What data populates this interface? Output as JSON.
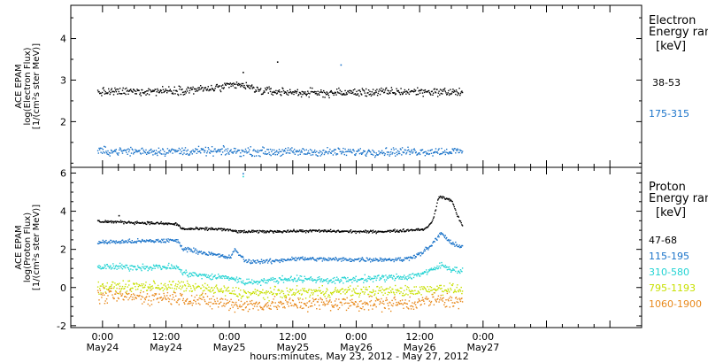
{
  "chart_data": {
    "type": "scatter",
    "xlabel": "hours:minutes, May 23, 2012 - May 27, 2012",
    "x_axis": {
      "range_hours": [
        -6,
        102
      ],
      "ticks": [
        {
          "hour": 0,
          "time": "0:00",
          "date": "May24"
        },
        {
          "hour": 12,
          "time": "12:00",
          "date": "May24"
        },
        {
          "hour": 24,
          "time": "0:00",
          "date": "May25"
        },
        {
          "hour": 36,
          "time": "12:00",
          "date": "May25"
        },
        {
          "hour": 48,
          "time": "0:00",
          "date": "May26"
        },
        {
          "hour": 60,
          "time": "12:00",
          "date": "May26"
        },
        {
          "hour": 72,
          "time": "0:00",
          "date": "May27"
        }
      ]
    },
    "panels": [
      {
        "id": "electron",
        "ylabel_lines": [
          "ACE EPAM",
          "log(Electron Flux)",
          "[1/(cm²s ster MeV)]"
        ],
        "ylim": [
          0.9,
          4.8
        ],
        "yticks": [
          2,
          3,
          4
        ],
        "legend_title": "Electron",
        "legend_subtitle": "Energy ranges",
        "legend_unit": "[keV]",
        "series": [
          {
            "name": "38-53",
            "color": "#000000",
            "profile": [
              [
                -1,
                2.72
              ],
              [
                12,
                2.76
              ],
              [
                20,
                2.8
              ],
              [
                26,
                2.9
              ],
              [
                30,
                2.75
              ],
              [
                40,
                2.7
              ],
              [
                50,
                2.72
              ],
              [
                60,
                2.74
              ],
              [
                68,
                2.72
              ]
            ],
            "jitter": 0.07,
            "outliers": [
              [
                26.5,
                3.2
              ],
              [
                33,
                3.45
              ]
            ]
          },
          {
            "name": "175-315",
            "color": "#1a73c9",
            "profile": [
              [
                -1,
                1.3
              ],
              [
                20,
                1.3
              ],
              [
                40,
                1.28
              ],
              [
                68,
                1.3
              ]
            ],
            "jitter": 0.07,
            "outliers": [
              [
                45,
                3.38
              ]
            ]
          }
        ]
      },
      {
        "id": "proton",
        "ylabel_lines": [
          "ACE EPAM",
          "log(Proton Flux)",
          "[1/(cm²s ster MeV)]"
        ],
        "ylim": [
          -2.1,
          6.3
        ],
        "yticks": [
          -2,
          0,
          2,
          4,
          6
        ],
        "legend_title": "Proton",
        "legend_subtitle": "Energy ranges",
        "legend_unit": "[keV]",
        "series": [
          {
            "name": "47-68",
            "color": "#000000",
            "profile": [
              [
                -1,
                3.5
              ],
              [
                10,
                3.4
              ],
              [
                14,
                3.35
              ],
              [
                15,
                3.1
              ],
              [
                22,
                3.1
              ],
              [
                26,
                2.95
              ],
              [
                40,
                3.0
              ],
              [
                50,
                2.95
              ],
              [
                56,
                3.0
              ],
              [
                61,
                3.1
              ],
              [
                62.5,
                3.6
              ],
              [
                63.5,
                4.8
              ],
              [
                66,
                4.6
              ],
              [
                67,
                3.8
              ],
              [
                68,
                3.3
              ]
            ],
            "jitter": 0.05,
            "outliers": [
              [
                3,
                3.8
              ]
            ]
          },
          {
            "name": "115-195",
            "color": "#1a73c9",
            "profile": [
              [
                -1,
                2.4
              ],
              [
                14,
                2.5
              ],
              [
                15,
                2.1
              ],
              [
                20,
                1.8
              ],
              [
                24,
                1.6
              ],
              [
                25,
                2.0
              ],
              [
                27,
                1.4
              ],
              [
                32,
                1.4
              ],
              [
                36,
                1.55
              ],
              [
                44,
                1.5
              ],
              [
                50,
                1.5
              ],
              [
                54,
                1.5
              ],
              [
                57,
                1.5
              ],
              [
                60,
                1.8
              ],
              [
                62,
                2.2
              ],
              [
                64,
                2.9
              ],
              [
                66,
                2.3
              ],
              [
                68,
                2.2
              ]
            ],
            "jitter": 0.08,
            "outliers": [
              [
                26.5,
                6.0
              ]
            ]
          },
          {
            "name": "310-580",
            "color": "#22d3d3",
            "profile": [
              [
                -1,
                1.1
              ],
              [
                14,
                1.1
              ],
              [
                15,
                0.8
              ],
              [
                20,
                0.6
              ],
              [
                24,
                0.55
              ],
              [
                27,
                0.3
              ],
              [
                36,
                0.5
              ],
              [
                44,
                0.4
              ],
              [
                54,
                0.55
              ],
              [
                58,
                0.6
              ],
              [
                62,
                0.9
              ],
              [
                64,
                1.2
              ],
              [
                66,
                1.0
              ],
              [
                68,
                0.9
              ]
            ],
            "jitter": 0.12,
            "outliers": [
              [
                26.5,
                5.85
              ]
            ]
          },
          {
            "name": "795-1193",
            "color": "#c7e000",
            "profile": [
              [
                -1,
                0.05
              ],
              [
                14,
                0.1
              ],
              [
                20,
                -0.05
              ],
              [
                27,
                -0.3
              ],
              [
                40,
                -0.2
              ],
              [
                58,
                -0.15
              ],
              [
                64,
                0.0
              ],
              [
                68,
                -0.1
              ]
            ],
            "jitter": 0.2,
            "outliers": []
          },
          {
            "name": "1060-1900",
            "color": "#e8891c",
            "profile": [
              [
                -1,
                -0.4
              ],
              [
                14,
                -0.5
              ],
              [
                20,
                -0.7
              ],
              [
                27,
                -0.9
              ],
              [
                40,
                -0.8
              ],
              [
                58,
                -0.8
              ],
              [
                64,
                -0.6
              ],
              [
                68,
                -0.8
              ]
            ],
            "jitter": 0.26,
            "outliers": []
          }
        ]
      }
    ]
  }
}
